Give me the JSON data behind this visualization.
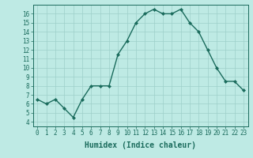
{
  "x": [
    0,
    1,
    2,
    3,
    4,
    5,
    6,
    7,
    8,
    9,
    10,
    11,
    12,
    13,
    14,
    15,
    16,
    17,
    18,
    19,
    20,
    21,
    22,
    23
  ],
  "y": [
    6.5,
    6.0,
    6.5,
    5.5,
    4.5,
    6.5,
    8.0,
    8.0,
    8.0,
    11.5,
    13.0,
    15.0,
    16.0,
    16.5,
    16.0,
    16.0,
    16.5,
    15.0,
    14.0,
    12.0,
    10.0,
    8.5,
    8.5,
    7.5
  ],
  "line_color": "#1a6b5c",
  "marker": "D",
  "marker_size": 2.0,
  "bg_color": "#beeae4",
  "grid_color": "#9dcfc9",
  "xlabel": "Humidex (Indice chaleur)",
  "xlabel_fontsize": 7,
  "tick_fontsize": 5.5,
  "ylim": [
    3.5,
    17.0
  ],
  "xlim": [
    -0.5,
    23.5
  ],
  "yticks": [
    4,
    5,
    6,
    7,
    8,
    9,
    10,
    11,
    12,
    13,
    14,
    15,
    16
  ],
  "xtick_labels": [
    "0",
    "1",
    "2",
    "3",
    "4",
    "5",
    "6",
    "7",
    "8",
    "9",
    "10",
    "11",
    "12",
    "13",
    "14",
    "15",
    "16",
    "17",
    "18",
    "19",
    "20",
    "21",
    "22",
    "23"
  ],
  "linewidth": 1.0
}
